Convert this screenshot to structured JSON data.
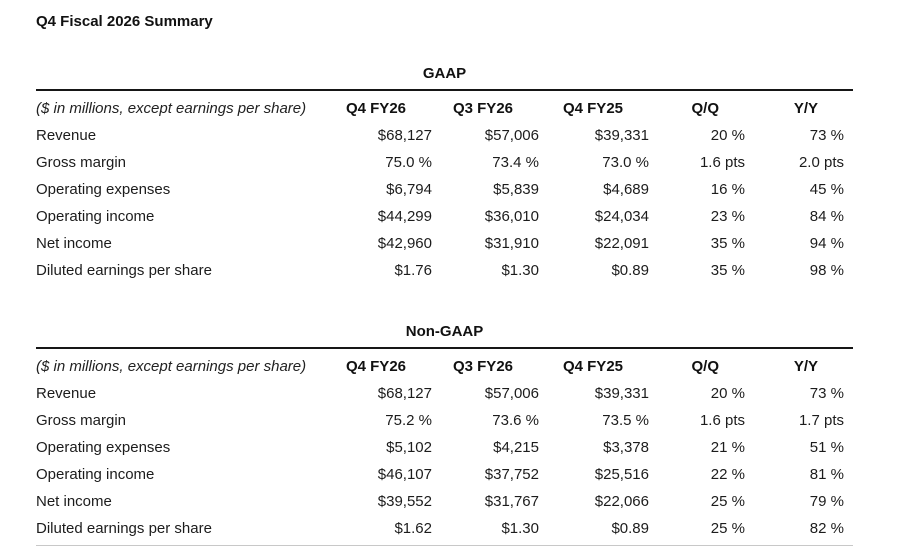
{
  "page_title": "Q4 Fiscal 2026 Summary",
  "colors": {
    "text": "#1c1c1c",
    "rule": "#161616",
    "bottom_rule": "#c8c8c8"
  },
  "tables": [
    {
      "heading": "GAAP",
      "note": "($ in millions, except earnings per share)",
      "columns": [
        "Q4 FY26",
        "Q3 FY26",
        "Q4 FY25",
        "Q/Q",
        "Y/Y"
      ],
      "rows": [
        {
          "label": "Revenue",
          "values": [
            "$68,127",
            "$57,006",
            "$39,331",
            "20 %",
            "73 %"
          ]
        },
        {
          "label": "Gross margin",
          "values": [
            "75.0 %",
            "73.4 %",
            "73.0 %",
            "1.6 pts",
            "2.0 pts"
          ]
        },
        {
          "label": "Operating expenses",
          "values": [
            "$6,794",
            "$5,839",
            "$4,689",
            "16 %",
            "45 %"
          ]
        },
        {
          "label": "Operating income",
          "values": [
            "$44,299",
            "$36,010",
            "$24,034",
            "23 %",
            "84 %"
          ]
        },
        {
          "label": "Net income",
          "values": [
            "$42,960",
            "$31,910",
            "$22,091",
            "35 %",
            "94 %"
          ]
        },
        {
          "label": "Diluted earnings per share",
          "values": [
            "$1.76",
            "$1.30",
            "$0.89",
            "35 %",
            "98 %"
          ]
        }
      ]
    },
    {
      "heading": "Non-GAAP",
      "note": "($ in millions, except earnings per share)",
      "columns": [
        "Q4 FY26",
        "Q3 FY26",
        "Q4 FY25",
        "Q/Q",
        "Y/Y"
      ],
      "rows": [
        {
          "label": "Revenue",
          "values": [
            "$68,127",
            "$57,006",
            "$39,331",
            "20 %",
            "73 %"
          ]
        },
        {
          "label": "Gross margin",
          "values": [
            "75.2 %",
            "73.6 %",
            "73.5 %",
            "1.6 pts",
            "1.7 pts"
          ]
        },
        {
          "label": "Operating expenses",
          "values": [
            "$5,102",
            "$4,215",
            "$3,378",
            "21 %",
            "51 %"
          ]
        },
        {
          "label": "Operating income",
          "values": [
            "$46,107",
            "$37,752",
            "$25,516",
            "22 %",
            "81 %"
          ]
        },
        {
          "label": "Net income",
          "values": [
            "$39,552",
            "$31,767",
            "$22,066",
            "25 %",
            "79 %"
          ]
        },
        {
          "label": "Diluted earnings per share",
          "values": [
            "$1.62",
            "$1.30",
            "$0.89",
            "25 %",
            "82 %"
          ]
        }
      ]
    }
  ]
}
